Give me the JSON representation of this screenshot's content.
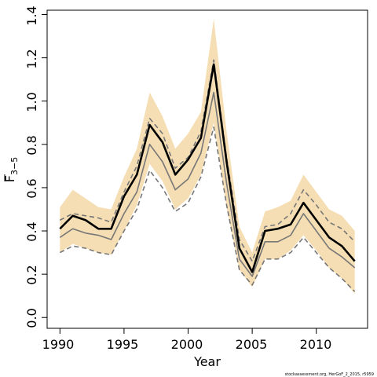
{
  "chart_data": {
    "type": "line",
    "xlabel": "Year",
    "ylabel": {
      "main": "F",
      "sub": "3−5"
    },
    "xlim": [
      1989,
      2014
    ],
    "ylim": [
      -0.05,
      1.42
    ],
    "xticks": [
      1990,
      1995,
      2000,
      2005,
      2010
    ],
    "yticks": [
      0.0,
      0.2,
      0.4,
      0.6,
      0.8,
      1.0,
      1.2,
      1.4
    ],
    "xtick_labels": [
      "1990",
      "1995",
      "2000",
      "2005",
      "2010"
    ],
    "ytick_labels": [
      "0.0",
      "0.2",
      "0.4",
      "0.6",
      "0.8",
      "1.0",
      "1.2",
      "1.4"
    ],
    "x": [
      1990,
      1991,
      1992,
      1993,
      1994,
      1995,
      1996,
      1997,
      1998,
      1999,
      2000,
      2001,
      2002,
      2003,
      2004,
      2005,
      2006,
      2007,
      2008,
      2009,
      2010,
      2011,
      2012,
      2013
    ],
    "band": {
      "color": "#f5deb3",
      "upper": [
        0.51,
        0.59,
        0.55,
        0.51,
        0.5,
        0.65,
        0.78,
        1.04,
        0.93,
        0.78,
        0.85,
        0.95,
        1.38,
        0.86,
        0.42,
        0.3,
        0.49,
        0.51,
        0.54,
        0.66,
        0.58,
        0.5,
        0.47,
        0.4
      ],
      "lower": [
        0.3,
        0.34,
        0.32,
        0.3,
        0.29,
        0.4,
        0.52,
        0.71,
        0.63,
        0.5,
        0.55,
        0.66,
        0.9,
        0.51,
        0.22,
        0.14,
        0.27,
        0.27,
        0.31,
        0.38,
        0.31,
        0.23,
        0.18,
        0.11
      ]
    },
    "series": [
      {
        "role": "estimate",
        "color": "#000000",
        "style": "solid",
        "width": 2.6,
        "values": [
          0.41,
          0.47,
          0.45,
          0.41,
          0.41,
          0.56,
          0.66,
          0.89,
          0.81,
          0.66,
          0.73,
          0.83,
          1.17,
          0.72,
          0.32,
          0.21,
          0.4,
          0.41,
          0.43,
          0.53,
          0.45,
          0.37,
          0.33,
          0.26
        ]
      },
      {
        "role": "secondary-estimate",
        "color": "#777777",
        "style": "solid",
        "width": 1.6,
        "values": [
          0.37,
          0.41,
          0.39,
          0.38,
          0.36,
          0.48,
          0.58,
          0.8,
          0.72,
          0.59,
          0.64,
          0.76,
          1.04,
          0.62,
          0.27,
          0.19,
          0.35,
          0.35,
          0.38,
          0.48,
          0.4,
          0.32,
          0.28,
          0.23
        ]
      },
      {
        "role": "upper-ci",
        "color": "#777777",
        "style": "dashed",
        "width": 1.6,
        "values": [
          0.45,
          0.48,
          0.47,
          0.46,
          0.44,
          0.58,
          0.7,
          0.92,
          0.85,
          0.69,
          0.74,
          0.86,
          1.19,
          0.74,
          0.36,
          0.26,
          0.42,
          0.43,
          0.48,
          0.59,
          0.52,
          0.44,
          0.41,
          0.35
        ]
      },
      {
        "role": "lower-ci",
        "color": "#777777",
        "style": "dashed",
        "width": 1.6,
        "values": [
          0.3,
          0.33,
          0.32,
          0.3,
          0.29,
          0.4,
          0.5,
          0.68,
          0.6,
          0.49,
          0.53,
          0.65,
          0.88,
          0.52,
          0.22,
          0.15,
          0.27,
          0.27,
          0.3,
          0.37,
          0.3,
          0.23,
          0.18,
          0.12
        ]
      }
    ],
    "grid": false
  },
  "footer": {
    "text": "stockassessment.org, HerGoF_2_2015, r5959"
  }
}
